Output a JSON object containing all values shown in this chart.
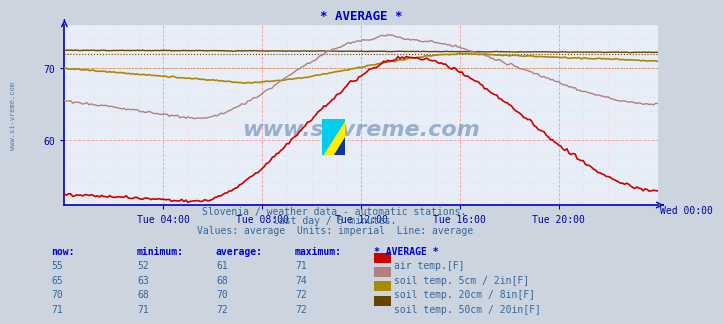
{
  "title": "* AVERAGE *",
  "background_color": "#ccd4e0",
  "plot_bg_color": "#e8eef8",
  "grid_color_major": "#ff9999",
  "grid_color_minor": "#ffcccc",
  "xlabel_ticks": [
    "Tue 04:00",
    "Tue 08:00",
    "Tue 12:00",
    "Tue 16:00",
    "Tue 20:00",
    "Wed 00:00"
  ],
  "yticks": [
    60,
    70
  ],
  "ylim": [
    51,
    76
  ],
  "num_points": 289,
  "series_air_color": "#cc0000",
  "series_soil5_color": "#b08080",
  "series_soil20_color": "#aa8800",
  "series_soil50_color": "#664400",
  "watermark": "www.si-vreme.com",
  "subtitle1": "Slovenia / weather data - automatic stations.",
  "subtitle2": "last day / 5 minutes.",
  "subtitle3": "Values: average  Units: imperial  Line: average",
  "table_headers": [
    "now:",
    "minimum:",
    "average:",
    "maximum:",
    "* AVERAGE *"
  ],
  "table_rows": [
    {
      "now": "55",
      "min": "52",
      "avg": "61",
      "max": "71",
      "color": "#cc0000",
      "label": "air temp.[F]"
    },
    {
      "now": "65",
      "min": "63",
      "avg": "68",
      "max": "74",
      "color": "#b08080",
      "label": "soil temp. 5cm / 2in[F]"
    },
    {
      "now": "70",
      "min": "68",
      "avg": "70",
      "max": "72",
      "color": "#aa8800",
      "label": "soil temp. 20cm / 8in[F]"
    },
    {
      "now": "71",
      "min": "71",
      "avg": "72",
      "max": "72",
      "color": "#664400",
      "label": "soil temp. 50cm / 20in[F]"
    }
  ],
  "axis_color": "#0000cc",
  "tick_color": "#0000aa",
  "title_color": "#0000cc",
  "subtitle_color": "#336699",
  "table_header_color": "#0000cc",
  "table_value_color": "#336699"
}
